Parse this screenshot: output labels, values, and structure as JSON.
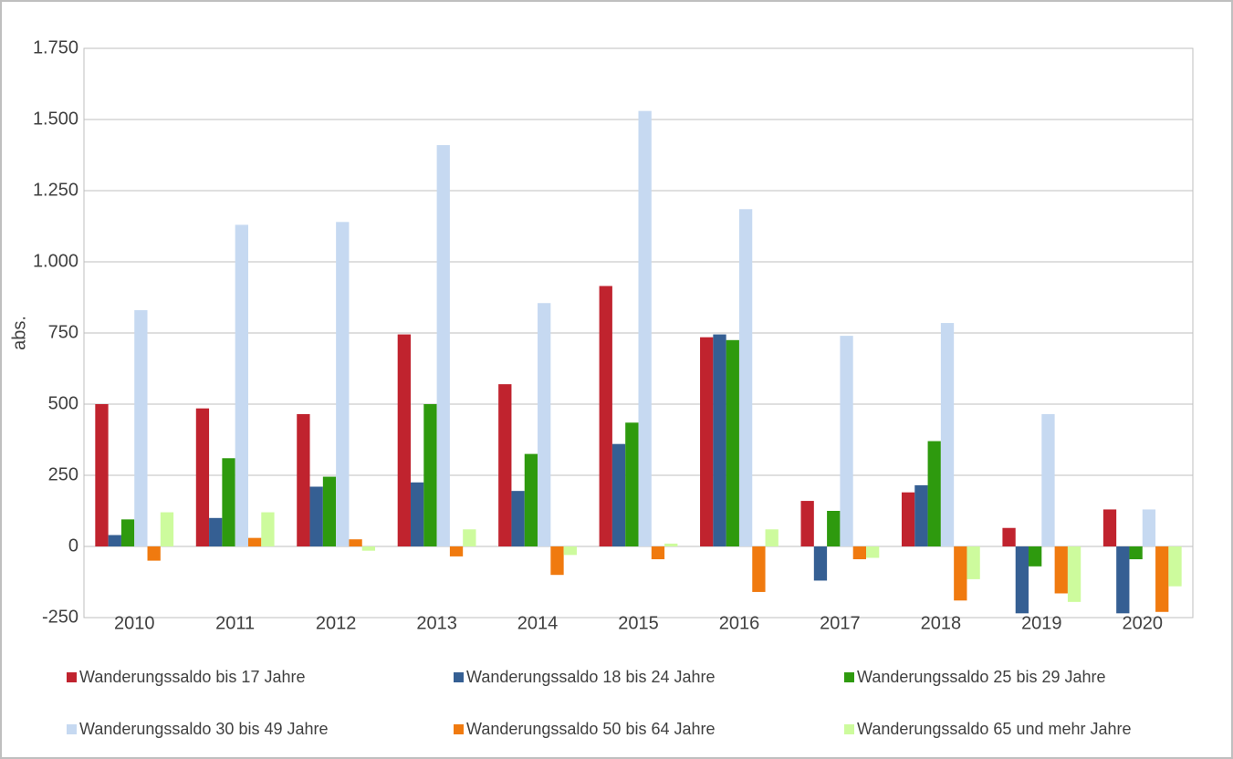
{
  "chart_data": {
    "type": "bar",
    "y_label": "abs.",
    "categories": [
      "2010",
      "2011",
      "2012",
      "2013",
      "2014",
      "2015",
      "2016",
      "2017",
      "2018",
      "2019",
      "2020"
    ],
    "series": [
      {
        "name": "Wanderungssaldo bis 17 Jahre",
        "color": "#c0232e",
        "values": [
          500,
          485,
          465,
          745,
          570,
          915,
          735,
          160,
          190,
          65,
          130
        ]
      },
      {
        "name": "Wanderungssaldo 18 bis 24 Jahre",
        "color": "#355f93",
        "values": [
          40,
          100,
          210,
          225,
          195,
          360,
          745,
          -120,
          215,
          -235,
          -235
        ]
      },
      {
        "name": "Wanderungssaldo 25 bis 29 Jahre",
        "color": "#2e9a0e",
        "values": [
          95,
          310,
          245,
          500,
          325,
          435,
          725,
          125,
          370,
          -70,
          -45
        ]
      },
      {
        "name": "Wanderungssaldo 30 bis 49 Jahre",
        "color": "#c6d9f1",
        "values": [
          830,
          1130,
          1140,
          1410,
          855,
          1530,
          1185,
          740,
          785,
          465,
          130
        ]
      },
      {
        "name": "Wanderungssaldo 50 bis 64 Jahre",
        "color": "#f07a0f",
        "values": [
          -50,
          30,
          25,
          -35,
          -100,
          -45,
          -160,
          -45,
          -190,
          -165,
          -230
        ]
      },
      {
        "name": "Wanderungssaldo 65 und mehr Jahre",
        "color": "#cdfb9d",
        "values": [
          120,
          120,
          -15,
          60,
          -30,
          10,
          60,
          -40,
          -115,
          -195,
          -140
        ]
      }
    ],
    "ylim": [
      -250,
      1750
    ],
    "yticks": [
      {
        "value": -250,
        "label": "-250"
      },
      0,
      250,
      500,
      750,
      {
        "value": 1000,
        "label": "1.000"
      },
      {
        "value": 1250,
        "label": "1.250"
      },
      {
        "value": 1500,
        "label": "1.500"
      },
      {
        "value": 1750,
        "label": "1.750"
      }
    ],
    "grid": true
  }
}
